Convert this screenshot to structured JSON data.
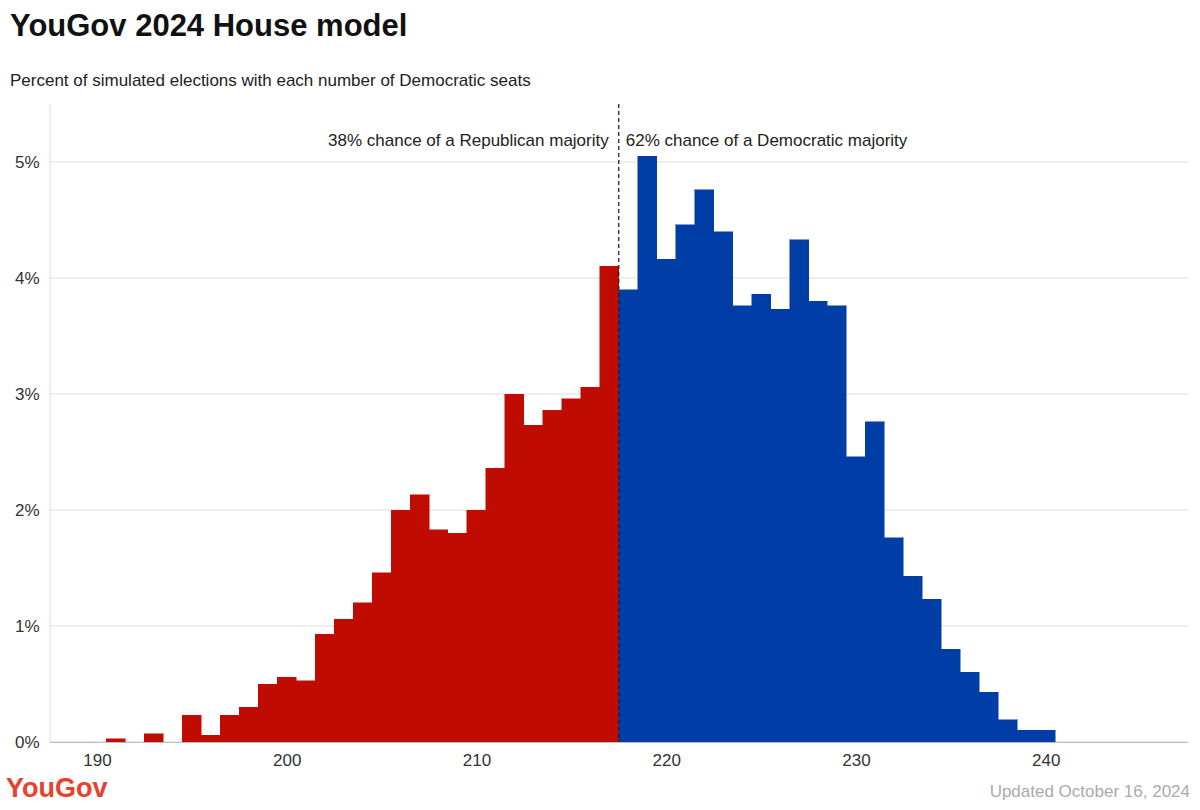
{
  "chart_data": {
    "type": "histogram",
    "title": "YouGov 2024 House model",
    "subtitle": "Percent of simulated elections with each number of Democratic seats",
    "bins": [
      190.5,
      191.5,
      192.5,
      193.5,
      194.5,
      195.5,
      196.5,
      197.5,
      198.5,
      199.5,
      200.5,
      201.5,
      202.5,
      203.5,
      204.5,
      205.5,
      206.5,
      207.5,
      208.5,
      209.5,
      210.5,
      211.5,
      212.5,
      213.5,
      214.5,
      215.5,
      216.5,
      217.5,
      218.5,
      219.5,
      220.5,
      221.5,
      222.5,
      223.5,
      224.5,
      225.5,
      226.5,
      227.5,
      228.5,
      229.5,
      230.5,
      231.5,
      232.5,
      233.5,
      234.5,
      235.5,
      236.5,
      237.5,
      238.5,
      239.5,
      240.5
    ],
    "values": [
      0.03,
      0,
      0.07,
      0,
      0.23,
      0.06,
      0.23,
      0.3,
      0.5,
      0.56,
      0.53,
      0.93,
      1.06,
      1.2,
      1.46,
      2.0,
      2.13,
      1.83,
      1.8,
      2.0,
      2.36,
      3.0,
      2.73,
      2.86,
      2.96,
      3.06,
      4.1,
      3.9,
      5.05,
      4.16,
      4.46,
      4.76,
      4.4,
      3.76,
      3.86,
      3.73,
      4.33,
      3.8,
      3.76,
      2.46,
      2.76,
      1.76,
      1.43,
      1.23,
      0.8,
      0.6,
      0.43,
      0.19,
      0.1,
      0.1
    ],
    "colors": [
      "#c00c00",
      "#c00c00",
      "#c00c00",
      "#c00c00",
      "#c00c00",
      "#c00c00",
      "#c00c00",
      "#c00c00",
      "#c00c00",
      "#c00c00",
      "#c00c00",
      "#c00c00",
      "#c00c00",
      "#c00c00",
      "#c00c00",
      "#c00c00",
      "#c00c00",
      "#c00c00",
      "#c00c00",
      "#c00c00",
      "#c00c00",
      "#c00c00",
      "#c00c00",
      "#c00c00",
      "#c00c00",
      "#c00c00",
      "#c00c00",
      "#003da6",
      "#003da6",
      "#003da6",
      "#003da6",
      "#003da6",
      "#003da6",
      "#003da6",
      "#003da6",
      "#003da6",
      "#003da6",
      "#003da6",
      "#003da6",
      "#003da6",
      "#003da6",
      "#003da6",
      "#003da6",
      "#003da6",
      "#003da6",
      "#003da6",
      "#003da6",
      "#003da6",
      "#003da6",
      "#003da6"
    ],
    "xlim": [
      187.5,
      247.5
    ],
    "ylim": [
      0,
      5.5
    ],
    "xticks": [
      190,
      200,
      210,
      220,
      230,
      240
    ],
    "yticks": [
      {
        "value": 0,
        "label": "0%"
      },
      {
        "value": 1,
        "label": "1%"
      },
      {
        "value": 2,
        "label": "2%"
      },
      {
        "value": 3,
        "label": "3%"
      },
      {
        "value": 4,
        "label": "4%"
      },
      {
        "value": 5,
        "label": "5%"
      }
    ],
    "grid": true,
    "divider": 217.5,
    "annotations": [
      "38% chance of a Republican majority",
      "62% chance of a Democratic majority"
    ],
    "logo": "YouGov",
    "note": "Updated October 16, 2024"
  }
}
